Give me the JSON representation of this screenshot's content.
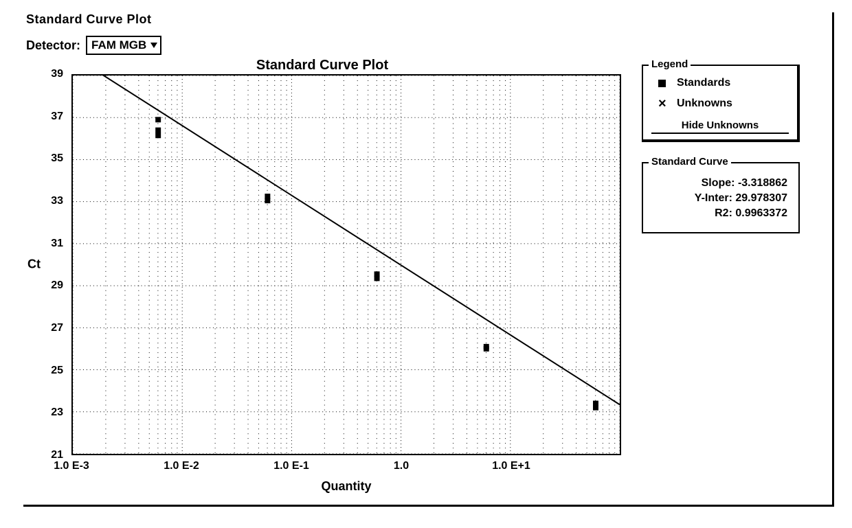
{
  "header": {
    "title": "Standard Curve Plot",
    "detector_label": "Detector:",
    "detector_value": "FAM MGB"
  },
  "chart": {
    "type": "scatter-with-regression",
    "title": "Standard Curve Plot",
    "x_axis": {
      "label": "Quantity",
      "scale": "log10",
      "min_exp": -3,
      "max_exp": 2,
      "ticks": [
        {
          "exp": -3,
          "label": "1.0 E-3"
        },
        {
          "exp": -2,
          "label": "1.0 E-2"
        },
        {
          "exp": -1,
          "label": "1.0 E-1"
        },
        {
          "exp": 0,
          "label": "1.0"
        },
        {
          "exp": 1,
          "label": "1.0 E+1"
        },
        {
          "exp": 2,
          "label": ""
        }
      ],
      "minor_ticks_per_decade": 8
    },
    "y_axis": {
      "label": "Ct",
      "scale": "linear",
      "min": 21,
      "max": 39,
      "tick_step": 2,
      "ticks": [
        21,
        23,
        25,
        27,
        29,
        31,
        33,
        35,
        37,
        39
      ]
    },
    "grid": {
      "major_color": "#000000",
      "minor_color": "#000000",
      "style": "dotted"
    },
    "regression": {
      "slope": -3.318862,
      "y_intercept": 29.978307,
      "r2": 0.9963372,
      "line_color": "#000000",
      "line_width": 2
    },
    "series": {
      "standards": {
        "marker": "square",
        "marker_size": 8,
        "marker_color": "#000000",
        "points": [
          {
            "log_x": -2.22,
            "y": 36.9
          },
          {
            "log_x": -2.22,
            "y": 36.4
          },
          {
            "log_x": -2.22,
            "y": 36.15
          },
          {
            "log_x": -1.22,
            "y": 33.25
          },
          {
            "log_x": -1.22,
            "y": 33.05
          },
          {
            "log_x": -0.22,
            "y": 29.55
          },
          {
            "log_x": -0.22,
            "y": 29.35
          },
          {
            "log_x": 0.78,
            "y": 26.1
          },
          {
            "log_x": 0.78,
            "y": 26.0
          },
          {
            "log_x": 1.78,
            "y": 23.4
          },
          {
            "log_x": 1.78,
            "y": 23.2
          }
        ]
      },
      "unknowns": {
        "marker": "x",
        "marker_size": 10,
        "marker_color": "#000000",
        "points": []
      }
    },
    "background_color": "#ffffff",
    "axis_color": "#000000",
    "text_color": "#000000",
    "title_fontsize": 20,
    "label_fontsize": 18,
    "tick_fontsize": 16
  },
  "legend": {
    "title": "Legend",
    "standards_label": "Standards",
    "unknowns_label": "Unknowns",
    "hide_unknowns_label": "Hide Unknowns"
  },
  "curve_panel": {
    "title": "Standard Curve",
    "slope_label": "Slope:",
    "slope_value": "-3.318862",
    "yinter_label": "Y-Inter:",
    "yinter_value": "29.978307",
    "r2_label": "R2:",
    "r2_value": "0.9963372"
  }
}
